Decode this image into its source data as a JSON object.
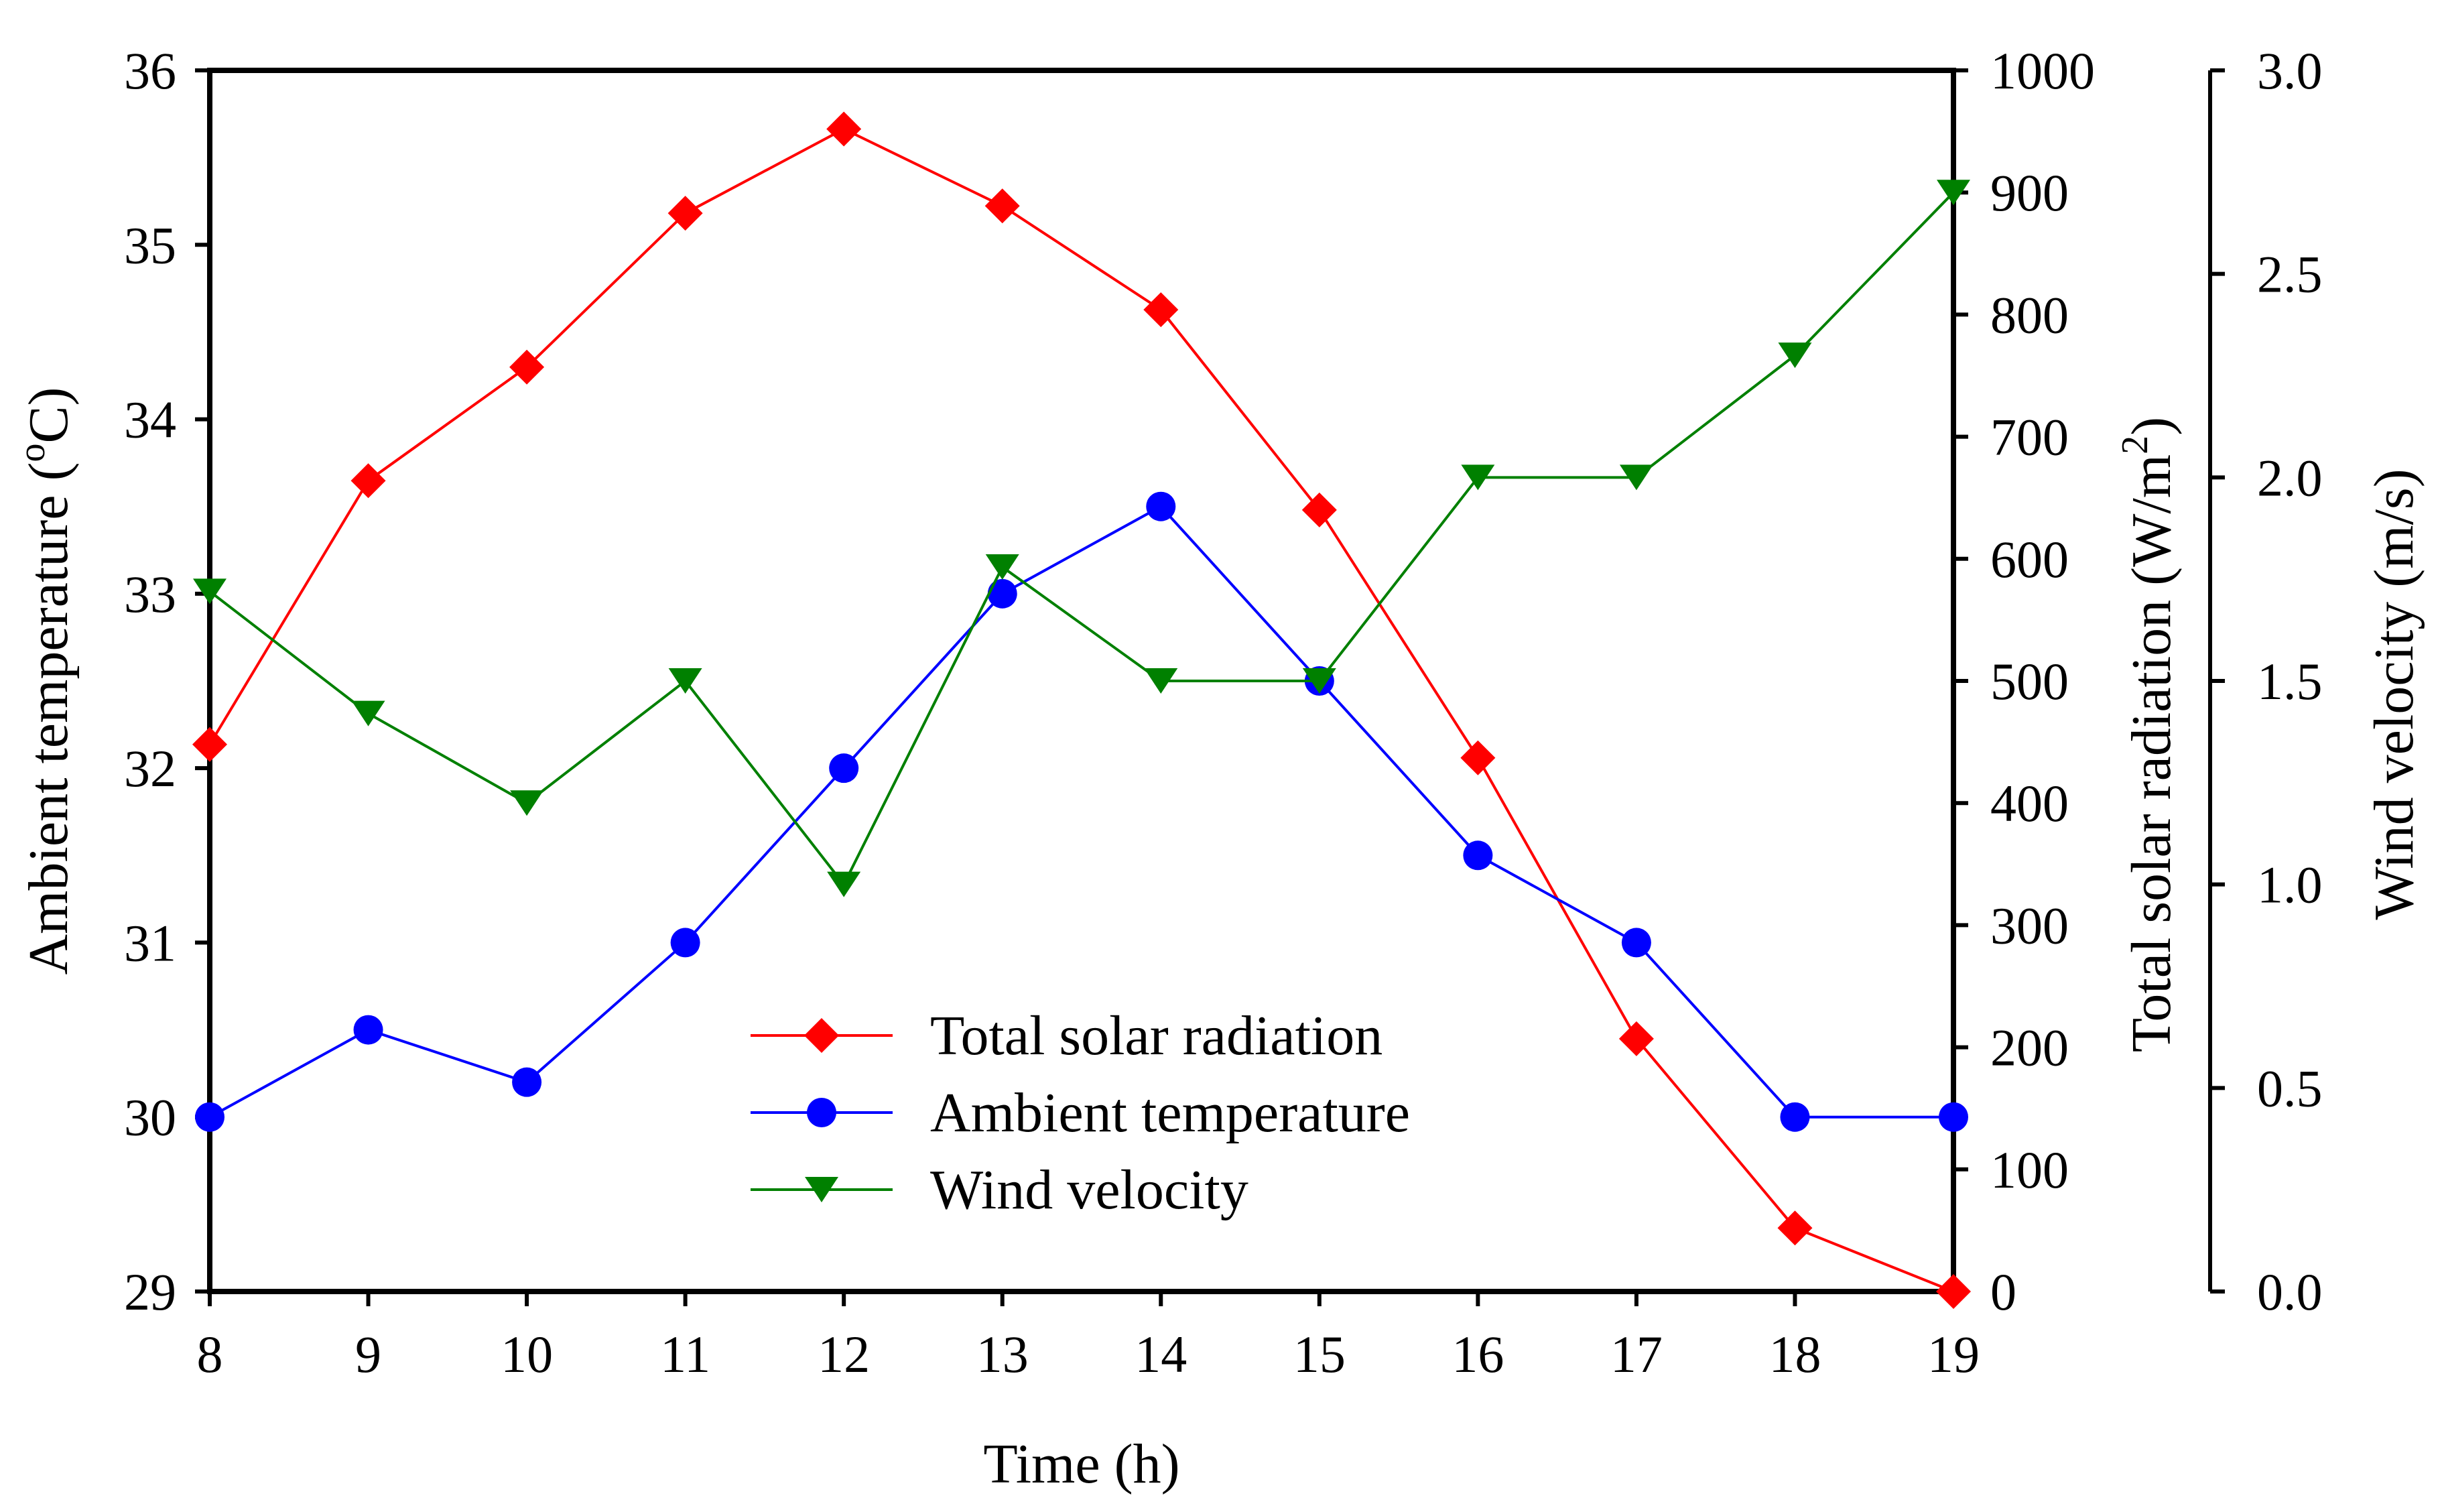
{
  "chart_data": {
    "type": "line",
    "x": [
      8,
      9,
      10,
      11,
      12,
      13,
      14,
      15,
      16,
      17,
      18,
      19
    ],
    "xlabel": "Time (h)",
    "xlim": [
      8,
      19
    ],
    "x_ticks": [
      "8",
      "9",
      "10",
      "11",
      "12",
      "13",
      "14",
      "15",
      "16",
      "17",
      "18",
      "19"
    ],
    "axes": {
      "left": {
        "label_prefix": "Ambient temperature (",
        "label_sup": "o",
        "label_suffix": "C)",
        "range": [
          29,
          36
        ],
        "ticks": [
          "29",
          "30",
          "31",
          "32",
          "33",
          "34",
          "35",
          "36"
        ]
      },
      "right_inner": {
        "label_prefix": "Total solar radiation (W/m",
        "label_sup": "2",
        "label_suffix": ")",
        "range": [
          0,
          1000
        ],
        "ticks": [
          "0",
          "100",
          "200",
          "300",
          "400",
          "500",
          "600",
          "700",
          "800",
          "900",
          "1000"
        ]
      },
      "right_outer": {
        "label": "Wind  velocity (m/s)",
        "range": [
          0,
          3
        ],
        "ticks": [
          "0.0",
          "0.5",
          "1.0",
          "1.5",
          "2.0",
          "2.5",
          "3.0"
        ]
      }
    },
    "series": [
      {
        "name": "Total solar radiation",
        "axis": "right_inner",
        "color": "#ff0000",
        "marker": "diamond",
        "values": [
          448,
          664,
          757,
          883,
          952,
          889,
          804,
          640,
          437,
          207,
          52,
          0
        ]
      },
      {
        "name": "Ambient temperature",
        "axis": "left",
        "color": "#0000ff",
        "marker": "circle",
        "values": [
          30.0,
          30.5,
          30.2,
          31.0,
          32.0,
          33.0,
          33.5,
          32.5,
          31.5,
          31.0,
          30.0,
          30.0
        ]
      },
      {
        "name": "Wind velocity",
        "axis": "right_outer",
        "color": "#008000",
        "marker": "triangle-down",
        "values": [
          1.72,
          1.42,
          1.2,
          1.5,
          1.0,
          1.78,
          1.5,
          1.5,
          2.0,
          2.0,
          2.3,
          2.7
        ]
      }
    ],
    "legend": {
      "position": "bottom-center"
    },
    "grid": false
  }
}
